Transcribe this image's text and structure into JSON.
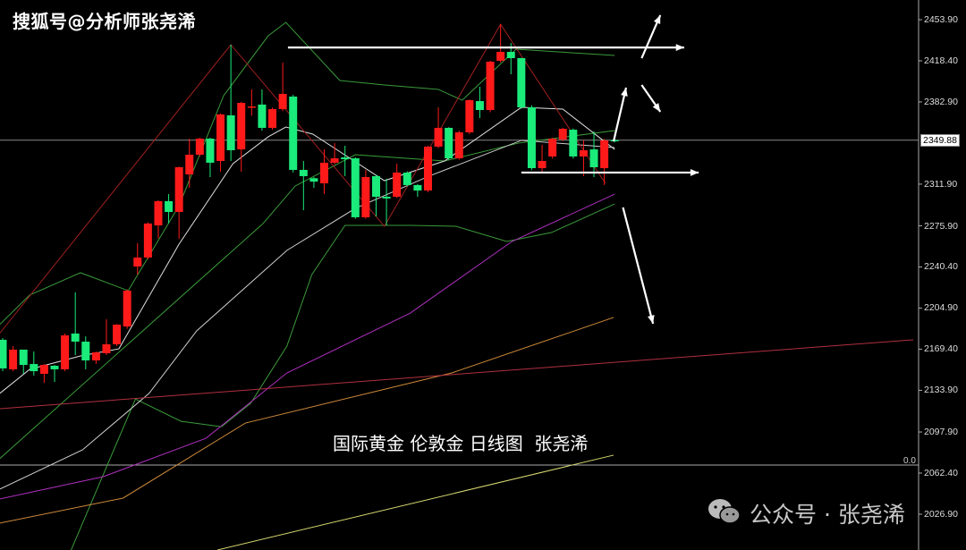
{
  "header": {
    "title": "搜狐号@分析师张尧浠"
  },
  "watermark": {
    "text": "公众号 · 张尧浠",
    "icon": "wechat-icon"
  },
  "chart_data": {
    "type": "candlestick",
    "title": "国际黄金 伦敦金 日线图  张尧浠",
    "xlim": [
      0.74,
      89.3
    ],
    "ylim": [
      1996,
      2470.9
    ],
    "y_ticks": [
      "2453.90",
      "2418.40",
      "2382.90",
      "2311.90",
      "2275.90",
      "2240.40",
      "2204.90",
      "2169.40",
      "2133.90",
      "2097.90",
      "2062.40",
      "2026.90"
    ],
    "current_price": "2349.88",
    "subwindow_label": "0.0",
    "colors": {
      "up": "#ff1a1a",
      "down": "#1aeb7a",
      "background": "#000000"
    },
    "ohlc": [
      [
        2177.5,
        2179,
        2150.4,
        2152.8
      ],
      [
        2152.0,
        2172.1,
        2150.4,
        2169.0
      ],
      [
        2169.0,
        2169.0,
        2148.1,
        2155.8
      ],
      [
        2156.6,
        2167.4,
        2146.6,
        2150.4
      ],
      [
        2148.1,
        2156.6,
        2140.4,
        2155.8
      ],
      [
        2155.1,
        2155.8,
        2141.1,
        2152.0
      ],
      [
        2152.0,
        2182.9,
        2150.4,
        2181.3
      ],
      [
        2182.9,
        2218.4,
        2164.3,
        2175.9
      ],
      [
        2175.9,
        2180.5,
        2152.0,
        2159.7
      ],
      [
        2159.7,
        2167.4,
        2156.6,
        2166.6
      ],
      [
        2165.9,
        2195.2,
        2164.3,
        2173.6
      ],
      [
        2173.6,
        2191,
        2172.1,
        2190.6
      ],
      [
        2189.0,
        2221,
        2187,
        2219.9
      ],
      [
        2240.8,
        2260.9,
        2233.8,
        2248.5
      ],
      [
        2248.5,
        2279,
        2247,
        2277.9
      ],
      [
        2276.3,
        2298,
        2265,
        2297.2
      ],
      [
        2297.2,
        2303.3,
        2277.9,
        2287.9
      ],
      [
        2287.9,
        2327,
        2264.7,
        2326.5
      ],
      [
        2320.3,
        2351.2,
        2308.7,
        2337.3
      ],
      [
        2337.3,
        2352,
        2336,
        2351.2
      ],
      [
        2351.2,
        2352,
        2318.0,
        2330.4
      ],
      [
        2331.9,
        2373,
        2322.6,
        2372.1
      ],
      [
        2371.3,
        2432.3,
        2331.9,
        2341.2
      ],
      [
        2341.9,
        2383,
        2322.6,
        2382.1
      ],
      [
        2378,
        2393.7,
        2371,
        2379
      ],
      [
        2380.6,
        2393.7,
        2358,
        2360.5
      ],
      [
        2360.5,
        2378,
        2359,
        2376.7
      ],
      [
        2376.7,
        2416.8,
        2375,
        2389.8
      ],
      [
        2387.5,
        2389,
        2322,
        2324.2
      ],
      [
        2324.2,
        2331.9,
        2289.4,
        2318.8
      ],
      [
        2317,
        2318,
        2308.7,
        2314.1
      ],
      [
        2312.6,
        2341.9,
        2303.3,
        2330.4
      ],
      [
        2330.4,
        2347.3,
        2329,
        2334.2
      ],
      [
        2335.0,
        2345.0,
        2318.8,
        2333.4
      ],
      [
        2334.2,
        2335,
        2282,
        2283.3
      ],
      [
        2283.3,
        2324.2,
        2282,
        2318.0
      ],
      [
        2318.8,
        2320,
        2284.0,
        2301.0
      ],
      [
        2301.0,
        2316.5,
        2276.3,
        2299.5
      ],
      [
        2301.0,
        2329.6,
        2300,
        2321.9
      ],
      [
        2321.9,
        2323,
        2310,
        2311.1
      ],
      [
        2311.1,
        2312,
        2301.0,
        2306.4
      ],
      [
        2306.4,
        2345,
        2305,
        2344.3
      ],
      [
        2344.3,
        2378.2,
        2343,
        2360.5
      ],
      [
        2360.5,
        2361,
        2333,
        2334.2
      ],
      [
        2334.2,
        2358,
        2333,
        2356.6
      ],
      [
        2356.6,
        2385,
        2355,
        2384.4
      ],
      [
        2383.6,
        2396.0,
        2369.0,
        2375.9
      ],
      [
        2375.9,
        2418.4,
        2374,
        2417.6
      ],
      [
        2418.4,
        2450.0,
        2417,
        2426.1
      ],
      [
        2426.1,
        2433.8,
        2406.8,
        2420.7
      ],
      [
        2420.7,
        2421,
        2377,
        2378.2
      ],
      [
        2378.2,
        2380,
        2324,
        2325.7
      ],
      [
        2325.7,
        2345.8,
        2322.6,
        2331.9
      ],
      [
        2335.8,
        2352,
        2334,
        2351.2
      ],
      [
        2350.4,
        2360.5,
        2349,
        2359.7
      ],
      [
        2358.9,
        2360,
        2334,
        2335.8
      ],
      [
        2335.8,
        2349.7,
        2318.8,
        2341.2
      ],
      [
        2341.9,
        2357.4,
        2318.0,
        2326.5
      ],
      [
        2325.7,
        2351,
        2311.1,
        2349.7
      ],
      [
        2350.0,
        2351,
        2348,
        2349.2
      ]
    ],
    "lines": [
      {
        "color": "#3a9a3a",
        "points": [
          [
            0.7,
            2190.6
          ],
          [
            3.6,
            2216.1
          ],
          [
            8.5,
            2235.4
          ],
          [
            13.1,
            2219.9
          ],
          [
            18,
            2293.3
          ],
          [
            22.3,
            2388.3
          ],
          [
            26.6,
            2440.0
          ],
          [
            28.3,
            2451.6
          ],
          [
            33.5,
            2401.4
          ],
          [
            37.8,
            2397.5
          ],
          [
            43,
            2393.7
          ],
          [
            45.3,
            2384.4
          ],
          [
            50.5,
            2428.4
          ],
          [
            60,
            2423.0
          ]
        ]
      },
      {
        "color": "#3a9a3a",
        "points": [
          [
            7.6,
            1996
          ],
          [
            13.8,
            2126.4
          ],
          [
            18.2,
            2107.1
          ],
          [
            22.1,
            2102.5
          ],
          [
            24.9,
            2122.6
          ],
          [
            28.4,
            2172
          ],
          [
            30.8,
            2233.8
          ],
          [
            34,
            2276.3
          ],
          [
            40.4,
            2276.3
          ],
          [
            44.7,
            2275.5
          ],
          [
            49.6,
            2262.4
          ],
          [
            53.9,
            2270.1
          ],
          [
            60,
            2294.8
          ]
        ]
      },
      {
        "color": "#3aa03a",
        "points": [
          [
            0.7,
            2074.8
          ],
          [
            26.1,
            2277.9
          ],
          [
            29.2,
            2310.3
          ],
          [
            35,
            2337.3
          ],
          [
            43.6,
            2331.9
          ],
          [
            50.7,
            2347.3
          ],
          [
            60,
            2358.2
          ]
        ]
      },
      {
        "color": "#e0e0e0",
        "points": [
          [
            0.7,
            2131.1
          ],
          [
            3.6,
            2152.0
          ],
          [
            8.5,
            2163.6
          ],
          [
            12.2,
            2169.7
          ],
          [
            18,
            2260.1
          ],
          [
            23.2,
            2329.6
          ],
          [
            26.6,
            2352.8
          ],
          [
            28.3,
            2361.2
          ],
          [
            30.9,
            2355.1
          ],
          [
            37.8,
            2314.9
          ],
          [
            43.6,
            2331.9
          ],
          [
            51,
            2378.2
          ],
          [
            55,
            2376.7
          ],
          [
            60,
            2341.9
          ]
        ]
      },
      {
        "color": "#cfcfcf",
        "points": [
          [
            0.7,
            2048.5
          ],
          [
            8.7,
            2082.5
          ],
          [
            15.1,
            2131.1
          ],
          [
            19.7,
            2185.2
          ],
          [
            28.4,
            2254.7
          ],
          [
            35,
            2291.0
          ],
          [
            42.1,
            2318.8
          ],
          [
            51,
            2349.7
          ],
          [
            60,
            2343.5
          ]
        ]
      },
      {
        "color": "#b030c0",
        "points": [
          [
            0.7,
            2040
          ],
          [
            10.7,
            2059.3
          ],
          [
            20.6,
            2092.5
          ],
          [
            28.4,
            2148.9
          ],
          [
            40.3,
            2200.6
          ],
          [
            50.1,
            2262.4
          ],
          [
            60,
            2303.3
          ]
        ]
      },
      {
        "color": "#d08a3a",
        "points": [
          [
            0.7,
            2019.2
          ],
          [
            12.6,
            2040.8
          ],
          [
            24.4,
            2105.6
          ],
          [
            44.3,
            2148.9
          ],
          [
            59.9,
            2196.8
          ]
        ]
      },
      {
        "color": "#b03040",
        "points": [
          [
            0.7,
            2118
          ],
          [
            88.8,
            2177.5
          ]
        ]
      },
      {
        "color": "#d8d870",
        "points": [
          [
            21.7,
            1996
          ],
          [
            59.9,
            2077.9
          ]
        ]
      },
      {
        "color": "#a02020",
        "points": [
          [
            0.7,
            2182.9
          ],
          [
            23,
            2432.3
          ],
          [
            37.8,
            2275.5
          ],
          [
            49,
            2450.0
          ],
          [
            59.1,
            2312.6
          ]
        ]
      }
    ],
    "annotations": {
      "levels": [
        {
          "price": 2429.9,
          "from": 28.5,
          "to": 66.7
        },
        {
          "price": 2321.9,
          "from": 51,
          "to": 68.1
        }
      ],
      "arrows": [
        [
          [
            59.9,
            2348.9
          ],
          [
            61.1,
            2395.2
          ]
        ],
        [
          [
            62.6,
            2420.7
          ],
          [
            64.4,
            2457.8
          ]
        ],
        [
          [
            62.6,
            2397.5
          ],
          [
            64.4,
            2374.4
          ]
        ],
        [
          [
            60.8,
            2291.8
          ],
          [
            63.7,
            2191.4
          ]
        ]
      ]
    }
  }
}
